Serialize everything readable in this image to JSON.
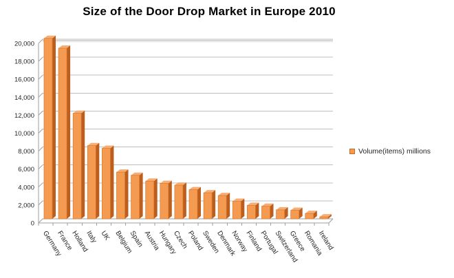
{
  "chart_data": {
    "type": "bar",
    "title": "Size of the Door Drop Market in Europe 2010",
    "categories": [
      "Germany",
      "France",
      "Holland",
      "Italy",
      "UK",
      "Belgium",
      "Spain",
      "Austria",
      "Hungary",
      "Czech",
      "Poland",
      "Sweden",
      "Denmark",
      "Norway",
      "Finland",
      "Portugal",
      "Switzerland",
      "Greece",
      "Romania",
      "Ireland"
    ],
    "series": [
      {
        "name": "Volume(items) millions",
        "values": [
          20100,
          19000,
          11750,
          8150,
          7850,
          5200,
          4850,
          4200,
          3950,
          3750,
          3250,
          2900,
          2600,
          1950,
          1500,
          1400,
          1000,
          950,
          600,
          220
        ]
      }
    ],
    "xlabel": "",
    "ylabel": "",
    "ylim": [
      0,
      20000
    ],
    "ytick_step": 2000,
    "ytick_labels": [
      "0",
      "2,000",
      "4,000",
      "6,000",
      "8,000",
      "10,000",
      "12,000",
      "14,000",
      "16,000",
      "18,000",
      "20,000"
    ],
    "grid": true,
    "legend_position": "right",
    "colors": {
      "bar_front": "#F59B51",
      "bar_side": "#BC5E1E",
      "bar_top": "#F7AE74",
      "bar_stroke": "#D97B2F",
      "gridline": "#BFBFBF",
      "axis": "#9E9E9E",
      "label": "#262626",
      "title": "#000000",
      "background": "#FFFFFF"
    }
  }
}
